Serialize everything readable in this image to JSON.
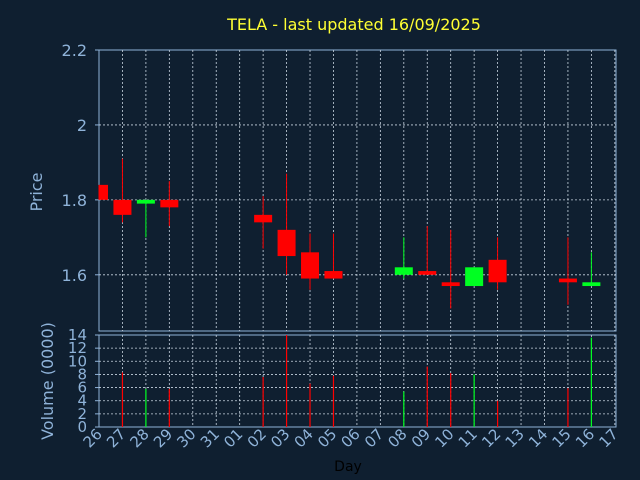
{
  "chart_data": [
    {
      "type": "candlestick",
      "title": "TELA - last updated 16/09/2025",
      "ylabel": "Price",
      "ylim": [
        1.45,
        2.2
      ],
      "yticks": [
        "2.2",
        "2",
        "1.8",
        "1.6"
      ],
      "yticks_values": [
        2.2,
        2.0,
        1.8,
        1.6
      ],
      "grid": true,
      "up_color": "#00ff22",
      "down_color": "#ff0000",
      "candles": [
        {
          "day": "26",
          "open": 1.84,
          "high": 1.84,
          "low": 1.8,
          "close": 1.8
        },
        {
          "day": "27",
          "open": 1.8,
          "high": 1.91,
          "low": 1.74,
          "close": 1.76
        },
        {
          "day": "28",
          "open": 1.79,
          "high": 1.8,
          "low": 1.7,
          "close": 1.8
        },
        {
          "day": "29",
          "open": 1.8,
          "high": 1.85,
          "low": 1.73,
          "close": 1.78
        },
        {
          "day": "02",
          "open": 1.76,
          "high": 1.81,
          "low": 1.67,
          "close": 1.74
        },
        {
          "day": "03",
          "open": 1.72,
          "high": 1.87,
          "low": 1.6,
          "close": 1.65
        },
        {
          "day": "04",
          "open": 1.66,
          "high": 1.71,
          "low": 1.56,
          "close": 1.59
        },
        {
          "day": "05",
          "open": 1.61,
          "high": 1.71,
          "low": 1.59,
          "close": 1.59
        },
        {
          "day": "08",
          "open": 1.6,
          "high": 1.7,
          "low": 1.59,
          "close": 1.62
        },
        {
          "day": "09",
          "open": 1.61,
          "high": 1.73,
          "low": 1.6,
          "close": 1.6
        },
        {
          "day": "10",
          "open": 1.58,
          "high": 1.72,
          "low": 1.51,
          "close": 1.57
        },
        {
          "day": "11",
          "open": 1.57,
          "high": 1.62,
          "low": 1.57,
          "close": 1.62
        },
        {
          "day": "12",
          "open": 1.64,
          "high": 1.7,
          "low": 1.56,
          "close": 1.58
        },
        {
          "day": "15",
          "open": 1.59,
          "high": 1.7,
          "low": 1.52,
          "close": 1.58
        },
        {
          "day": "16",
          "open": 1.57,
          "high": 1.66,
          "low": 1.57,
          "close": 1.58
        }
      ]
    },
    {
      "type": "bar",
      "ylabel": "Volume (0000)",
      "xlabel": "Day",
      "ylim": [
        0,
        14
      ],
      "yticks": [
        "14",
        "12",
        "10",
        "8",
        "6",
        "4",
        "2",
        "0"
      ],
      "yticks_values": [
        14,
        12,
        10,
        8,
        6,
        4,
        2,
        0
      ],
      "grid": true,
      "categories": [
        "26",
        "27",
        "28",
        "29",
        "30",
        "31",
        "01",
        "02",
        "03",
        "04",
        "05",
        "06",
        "07",
        "08",
        "09",
        "10",
        "11",
        "12",
        "13",
        "14",
        "15",
        "16",
        "17"
      ],
      "values": [
        0,
        8.3,
        5.8,
        5.8,
        0,
        0,
        0,
        7.6,
        14,
        6.6,
        7.8,
        0,
        0,
        5.4,
        9.2,
        8.2,
        8,
        4,
        0,
        0,
        5.9,
        13.6,
        0
      ],
      "colors": [
        "",
        "down",
        "up",
        "down",
        "",
        "",
        "",
        "down",
        "down",
        "down",
        "down",
        "",
        "",
        "up",
        "down",
        "down",
        "up",
        "down",
        "",
        "",
        "down",
        "up",
        ""
      ]
    }
  ]
}
